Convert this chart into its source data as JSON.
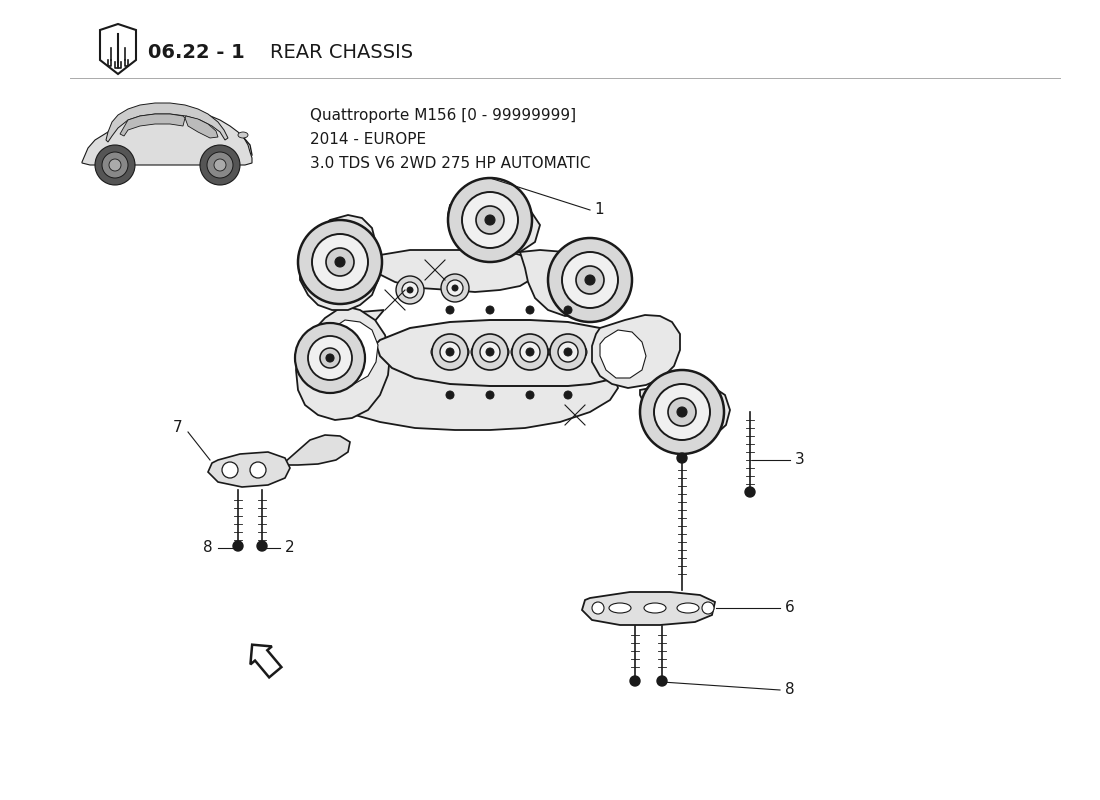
{
  "title_bold": "06.22 - 1",
  "title_light": "REAR CHASSIS",
  "car_info_line1": "Quattroporte M156 [0 - 99999999]",
  "car_info_line2": "2014 - EUROPE",
  "car_info_line3": "3.0 TDS V6 2WD 275 HP AUTOMATIC",
  "bg_color": "#ffffff",
  "line_color": "#1a1a1a",
  "figsize": [
    11.0,
    8.0
  ],
  "dpi": 100
}
